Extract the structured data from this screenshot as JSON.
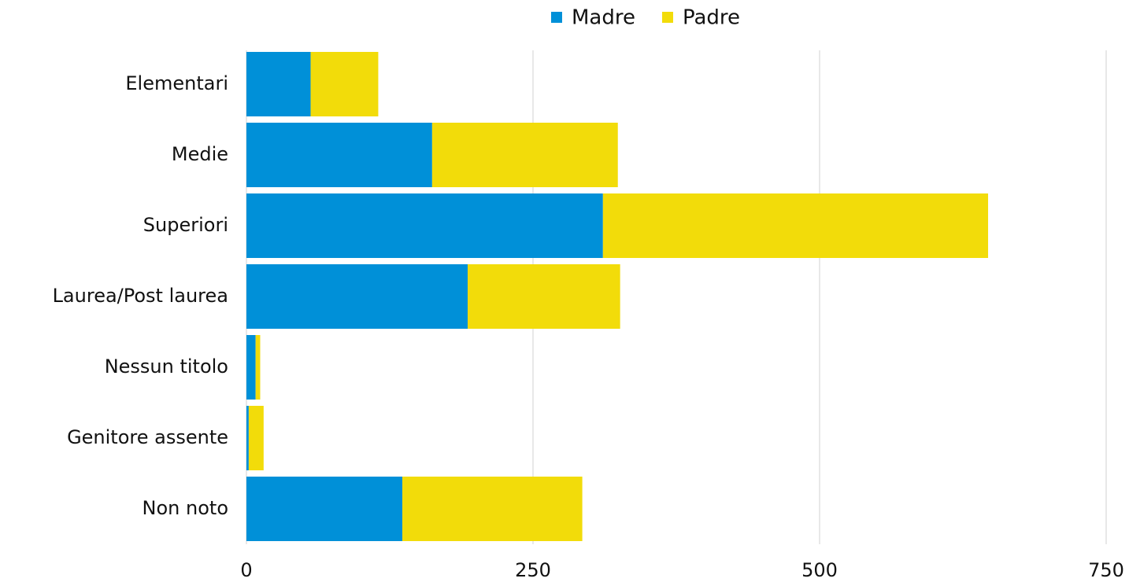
{
  "chart_data": {
    "type": "stacked-bar",
    "orientation": "horizontal",
    "categories": [
      "Elementari",
      "Medie",
      "Superiori",
      "Laurea/Post laurea",
      "Nessun titolo",
      "Genitore assente",
      "Non noto"
    ],
    "series": [
      {
        "name": "Madre",
        "color": "#0090d8",
        "values": [
          56,
          162,
          311,
          193,
          8,
          2,
          136
        ]
      },
      {
        "name": "Padre",
        "color": "#f2dc0a",
        "values": [
          59,
          162,
          336,
          133,
          4,
          13,
          157
        ]
      }
    ],
    "xlim": [
      0,
      750
    ],
    "xticks": [
      0,
      250,
      500,
      750
    ],
    "grid": true,
    "legend": "top"
  }
}
